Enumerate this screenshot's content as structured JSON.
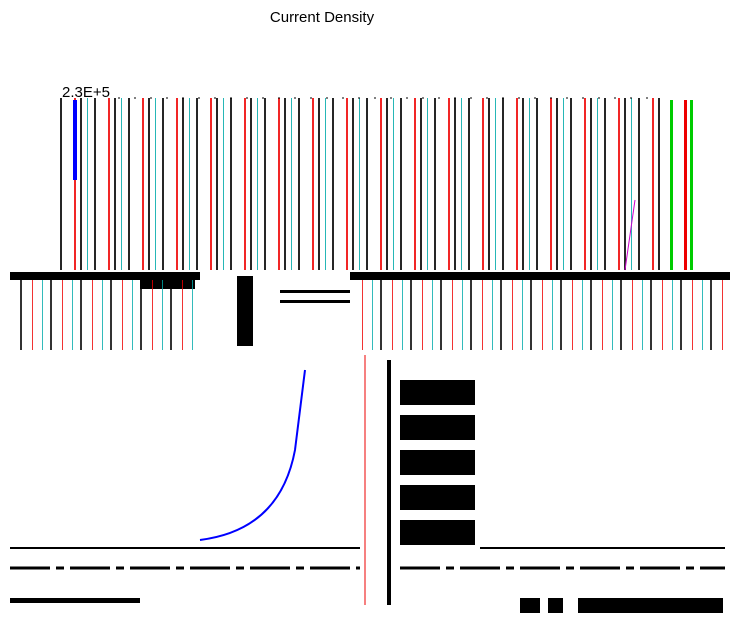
{
  "window": {
    "title": "Current Density",
    "axis_label": "2.3E+5"
  }
}
